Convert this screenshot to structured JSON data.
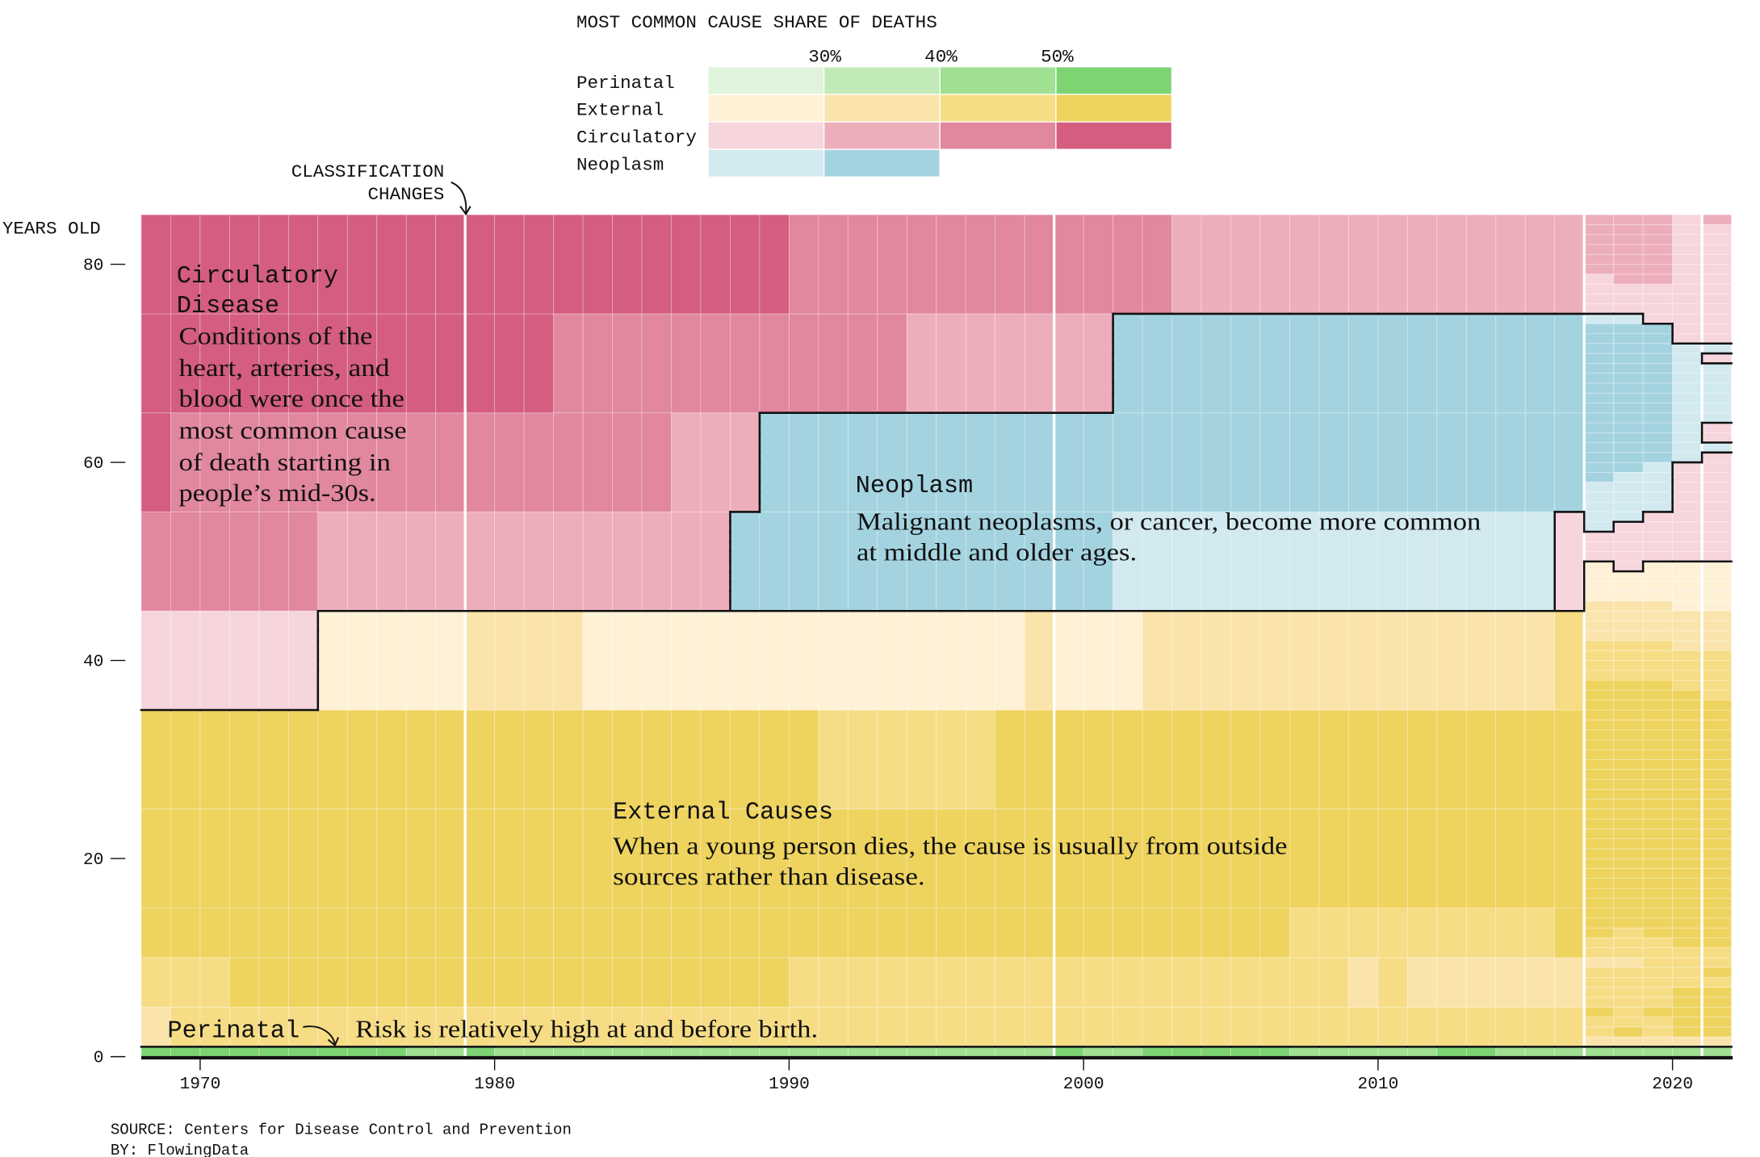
{
  "legend": {
    "title": "MOST COMMON CAUSE SHARE OF DEATHS",
    "thresholds": [
      "30%",
      "40%",
      "50%"
    ],
    "rows": [
      {
        "key": "P",
        "label": "Perinatal",
        "levels": 4
      },
      {
        "key": "E",
        "label": "External",
        "levels": 4
      },
      {
        "key": "C",
        "label": "Circulatory",
        "levels": 4
      },
      {
        "key": "N",
        "label": "Neoplasm",
        "levels": 2
      }
    ]
  },
  "annotations": {
    "classification": [
      "CLASSIFICATION",
      "CHANGES"
    ],
    "circulatory": {
      "title": [
        "Circulatory",
        "Disease"
      ],
      "body": [
        "Conditions of the",
        "heart, arteries, and",
        "blood were once the",
        "most common cause",
        "of death starting in",
        "people’s mid-30s."
      ]
    },
    "neoplasm": {
      "title": "Neoplasm",
      "body": [
        "Malignant neoplasms, or cancer, become more common",
        "at middle and older ages."
      ]
    },
    "external": {
      "title": "External Causes",
      "body": [
        "When a young person dies, the cause is usually from outside",
        "sources rather than disease."
      ]
    },
    "perinatal": {
      "title": "Perinatal",
      "body": "Risk is relatively high at and before birth."
    }
  },
  "footer": {
    "source": "SOURCE: Centers for Disease Control and Prevention",
    "by": "BY: FlowingData"
  },
  "chart_data": {
    "type": "heatmap",
    "xlabel": "",
    "ylabel": "YEARS OLD",
    "xlim": [
      1968,
      2022
    ],
    "ylim": [
      0,
      85
    ],
    "x_ticks": [
      1970,
      1980,
      1990,
      2000,
      2010,
      2020
    ],
    "y_ticks": [
      0,
      20,
      40,
      60,
      80
    ],
    "classification_change_years": [
      1979,
      1999,
      2017,
      2021
    ],
    "level_meaning": [
      "<30%",
      "30-40%",
      "40-50%",
      ">=50%"
    ],
    "colors": {
      "P": [
        "#e0f4dc",
        "#c1eab7",
        "#a0e093",
        "#7dd472"
      ],
      "E": [
        "#fff1d6",
        "#fae4ac",
        "#f6dc85",
        "#eed35e"
      ],
      "C": [
        "#f7d5dd",
        "#edaebb",
        "#e1879e",
        "#d45d80"
      ],
      "N": [
        "#d2e9f0",
        "#a4d3e0"
      ]
    },
    "cause_names": {
      "P": "Perinatal",
      "E": "External",
      "C": "Circulatory",
      "N": "Neoplasm"
    },
    "grouped_years": [
      1968,
      2016
    ],
    "age_groups": [
      {
        "ages": [
          0,
          1
        ],
        "runs": [
          [
            1968,
            1976,
            "P",
            3
          ],
          [
            1977,
            1978,
            "P",
            2
          ],
          [
            1979,
            1979,
            "P",
            3
          ],
          [
            1980,
            1998,
            "P",
            2
          ],
          [
            1999,
            1999,
            "P",
            3
          ],
          [
            2000,
            2001,
            "P",
            2
          ],
          [
            2002,
            2006,
            "P",
            3
          ],
          [
            2007,
            2011,
            "P",
            2
          ],
          [
            2012,
            2013,
            "P",
            3
          ],
          [
            2014,
            2016,
            "P",
            2
          ]
        ]
      },
      {
        "ages": [
          1,
          5
        ],
        "runs": [
          [
            1968,
            1968,
            "E",
            1
          ],
          [
            1969,
            2016,
            "E",
            2
          ]
        ]
      },
      {
        "ages": [
          5,
          10
        ],
        "runs": [
          [
            1968,
            1970,
            "E",
            2
          ],
          [
            1971,
            1989,
            "E",
            3
          ],
          [
            1990,
            2008,
            "E",
            2
          ],
          [
            2009,
            2009,
            "E",
            1
          ],
          [
            2010,
            2010,
            "E",
            2
          ],
          [
            2011,
            2016,
            "E",
            1
          ]
        ]
      },
      {
        "ages": [
          10,
          15
        ],
        "runs": [
          [
            1968,
            2006,
            "E",
            3
          ],
          [
            2007,
            2015,
            "E",
            2
          ],
          [
            2016,
            2016,
            "E",
            3
          ]
        ]
      },
      {
        "ages": [
          15,
          25
        ],
        "runs": [
          [
            1968,
            2016,
            "E",
            3
          ]
        ]
      },
      {
        "ages": [
          25,
          35
        ],
        "runs": [
          [
            1968,
            1990,
            "E",
            3
          ],
          [
            1991,
            1996,
            "E",
            2
          ],
          [
            1997,
            2016,
            "E",
            3
          ]
        ]
      },
      {
        "ages": [
          35,
          45
        ],
        "runs": [
          [
            1968,
            1973,
            "C",
            0
          ],
          [
            1974,
            1978,
            "E",
            0
          ],
          [
            1979,
            1982,
            "E",
            1
          ],
          [
            1983,
            1997,
            "E",
            0
          ],
          [
            1998,
            1998,
            "E",
            1
          ],
          [
            1999,
            2001,
            "E",
            0
          ],
          [
            2002,
            2015,
            "E",
            1
          ],
          [
            2016,
            2016,
            "E",
            2
          ]
        ]
      },
      {
        "ages": [
          45,
          55
        ],
        "runs": [
          [
            1968,
            1973,
            "C",
            2
          ],
          [
            1974,
            1987,
            "C",
            1
          ],
          [
            1988,
            2000,
            "N",
            1
          ],
          [
            2001,
            2015,
            "N",
            0
          ],
          [
            2016,
            2016,
            "C",
            0
          ]
        ]
      },
      {
        "ages": [
          55,
          65
        ],
        "runs": [
          [
            1968,
            1968,
            "C",
            3
          ],
          [
            1969,
            1985,
            "C",
            2
          ],
          [
            1986,
            1988,
            "C",
            1
          ],
          [
            1989,
            2016,
            "N",
            1
          ]
        ]
      },
      {
        "ages": [
          65,
          75
        ],
        "runs": [
          [
            1968,
            1981,
            "C",
            3
          ],
          [
            1982,
            1993,
            "C",
            2
          ],
          [
            1994,
            2000,
            "C",
            1
          ],
          [
            2001,
            2016,
            "N",
            1
          ]
        ]
      },
      {
        "ages": [
          75,
          85
        ],
        "runs": [
          [
            1968,
            1989,
            "C",
            3
          ],
          [
            1990,
            2002,
            "C",
            2
          ],
          [
            2003,
            2016,
            "C",
            1
          ]
        ]
      }
    ],
    "single_age_columns": [
      {
        "year": 2017,
        "perinatal_level": 2,
        "external_levels_ages_1_to_12": [
          1,
          2,
          2,
          3,
          2,
          2,
          2,
          2,
          1,
          2,
          2,
          3
        ],
        "runs": [
          [
            79,
            85,
            "C",
            1
          ],
          [
            75,
            79,
            "C",
            0
          ],
          [
            74,
            75,
            "N",
            0
          ],
          [
            58,
            74,
            "N",
            1
          ],
          [
            53,
            58,
            "N",
            0
          ],
          [
            50,
            53,
            "C",
            0
          ],
          [
            46,
            50,
            "E",
            0
          ],
          [
            42,
            46,
            "E",
            1
          ],
          [
            38,
            42,
            "E",
            2
          ],
          [
            13,
            38,
            "E",
            3
          ]
        ]
      },
      {
        "year": 2018,
        "perinatal_level": 2,
        "external_levels_ages_1_to_12": [
          1,
          3,
          2,
          2,
          2,
          2,
          2,
          2,
          1,
          2,
          2,
          2
        ],
        "runs": [
          [
            78,
            85,
            "C",
            1
          ],
          [
            75,
            78,
            "C",
            0
          ],
          [
            74,
            75,
            "N",
            0
          ],
          [
            59,
            74,
            "N",
            1
          ],
          [
            54,
            59,
            "N",
            0
          ],
          [
            49,
            54,
            "C",
            0
          ],
          [
            46,
            49,
            "E",
            0
          ],
          [
            42,
            46,
            "E",
            1
          ],
          [
            38,
            42,
            "E",
            2
          ],
          [
            13,
            38,
            "E",
            3
          ]
        ]
      },
      {
        "year": 2019,
        "perinatal_level": 2,
        "external_levels_ages_1_to_12": [
          1,
          2,
          2,
          3,
          2,
          2,
          2,
          2,
          2,
          2,
          2,
          3
        ],
        "runs": [
          [
            78,
            85,
            "C",
            1
          ],
          [
            74,
            78,
            "C",
            0
          ],
          [
            60,
            74,
            "N",
            1
          ],
          [
            55,
            60,
            "N",
            0
          ],
          [
            50,
            55,
            "C",
            0
          ],
          [
            46,
            50,
            "E",
            0
          ],
          [
            42,
            46,
            "E",
            1
          ],
          [
            38,
            42,
            "E",
            2
          ],
          [
            13,
            38,
            "E",
            3
          ]
        ]
      },
      {
        "year": 2020,
        "perinatal_level": 2,
        "external_levels_ages_1_to_12": [
          1,
          3,
          3,
          3,
          3,
          3,
          2,
          2,
          2,
          2,
          3,
          3
        ],
        "runs": [
          [
            72,
            85,
            "C",
            0
          ],
          [
            60,
            72,
            "N",
            0
          ],
          [
            50,
            60,
            "C",
            0
          ],
          [
            45,
            50,
            "E",
            0
          ],
          [
            41,
            45,
            "E",
            1
          ],
          [
            37,
            41,
            "E",
            2
          ],
          [
            13,
            37,
            "E",
            3
          ]
        ]
      },
      {
        "year": 2021,
        "perinatal_level": 2,
        "external_levels_ages_1_to_12": [
          1,
          3,
          3,
          3,
          3,
          3,
          2,
          3,
          2,
          2,
          3,
          3
        ],
        "runs": [
          [
            84,
            85,
            "C",
            1
          ],
          [
            72,
            84,
            "C",
            0
          ],
          [
            71,
            72,
            "N",
            0
          ],
          [
            70,
            71,
            "C",
            0
          ],
          [
            64,
            70,
            "N",
            0
          ],
          [
            62,
            64,
            "C",
            0
          ],
          [
            61,
            62,
            "N",
            0
          ],
          [
            50,
            61,
            "C",
            0
          ],
          [
            45,
            50,
            "E",
            0
          ],
          [
            41,
            45,
            "E",
            1
          ],
          [
            36,
            41,
            "E",
            2
          ],
          [
            13,
            36,
            "E",
            3
          ]
        ]
      }
    ]
  }
}
